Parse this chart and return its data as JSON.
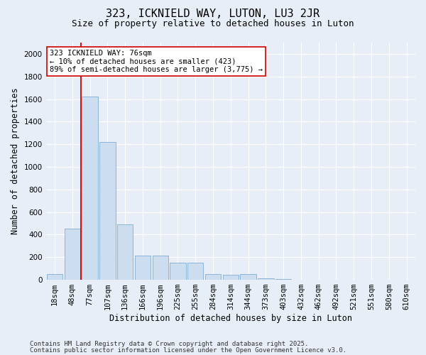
{
  "title1": "323, ICKNIELD WAY, LUTON, LU3 2JR",
  "title2": "Size of property relative to detached houses in Luton",
  "xlabel": "Distribution of detached houses by size in Luton",
  "ylabel": "Number of detached properties",
  "categories": [
    "18sqm",
    "48sqm",
    "77sqm",
    "107sqm",
    "136sqm",
    "166sqm",
    "196sqm",
    "225sqm",
    "255sqm",
    "284sqm",
    "314sqm",
    "344sqm",
    "373sqm",
    "403sqm",
    "432sqm",
    "462sqm",
    "492sqm",
    "521sqm",
    "551sqm",
    "580sqm",
    "610sqm"
  ],
  "values": [
    50,
    450,
    1620,
    1220,
    490,
    215,
    215,
    150,
    150,
    50,
    45,
    50,
    10,
    5,
    2,
    2,
    1,
    1,
    1,
    1,
    1
  ],
  "bar_color": "#ccddf0",
  "bar_edge_color": "#8ab4d8",
  "vline_x_index": 2,
  "vline_color": "#cc0000",
  "annotation_text": "323 ICKNIELD WAY: 76sqm\n← 10% of detached houses are smaller (423)\n89% of semi-detached houses are larger (3,775) →",
  "annotation_box_color": "#ffffff",
  "annotation_box_edge": "#cc0000",
  "ylim": [
    0,
    2100
  ],
  "yticks": [
    0,
    200,
    400,
    600,
    800,
    1000,
    1200,
    1400,
    1600,
    1800,
    2000
  ],
  "footer1": "Contains HM Land Registry data © Crown copyright and database right 2025.",
  "footer2": "Contains public sector information licensed under the Open Government Licence v3.0.",
  "bg_color": "#e8eef8",
  "plot_bg_color": "#e8eef8",
  "grid_color": "#ffffff",
  "title1_fontsize": 11,
  "title2_fontsize": 9,
  "tick_fontsize": 7.5,
  "label_fontsize": 8.5,
  "footer_fontsize": 6.5,
  "ann_fontsize": 7.5
}
